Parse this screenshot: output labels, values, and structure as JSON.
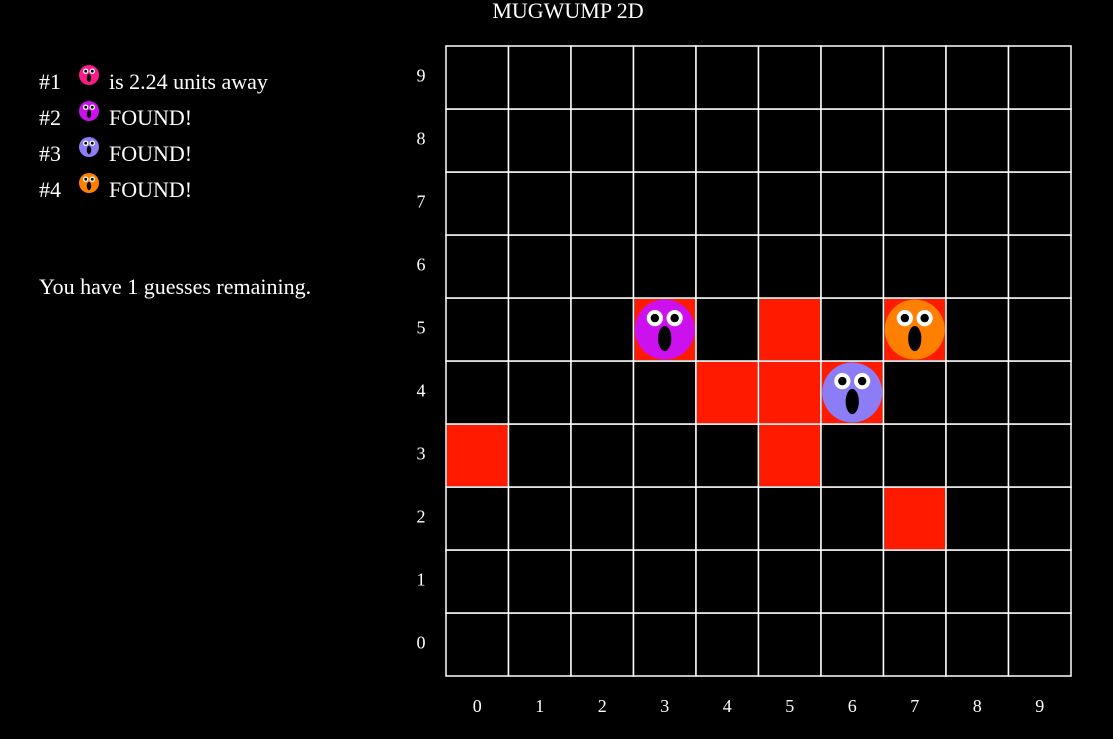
{
  "title": "MUGWUMP 2D",
  "mugwumps": [
    {
      "label": "#1",
      "color": "#ff1a8c",
      "status": "is 2.24 units away"
    },
    {
      "label": "#2",
      "color": "#cc11ee",
      "status": "FOUND!",
      "position": {
        "x": 3,
        "y": 5
      }
    },
    {
      "label": "#3",
      "color": "#8c7cf5",
      "status": "FOUND!",
      "position": {
        "x": 6,
        "y": 4
      }
    },
    {
      "label": "#4",
      "color": "#ff8000",
      "status": "FOUND!",
      "position": {
        "x": 7,
        "y": 5
      }
    }
  ],
  "message": "You have 1 guesses remaining.",
  "guess_color": "#ff1a00",
  "guesses": [
    {
      "x": 3,
      "y": 5
    },
    {
      "x": 5,
      "y": 5
    },
    {
      "x": 7,
      "y": 5
    },
    {
      "x": 4,
      "y": 4
    },
    {
      "x": 5,
      "y": 4
    },
    {
      "x": 6,
      "y": 4
    },
    {
      "x": 0,
      "y": 3
    },
    {
      "x": 5,
      "y": 3
    },
    {
      "x": 7,
      "y": 2
    }
  ],
  "x_labels": [
    0,
    1,
    2,
    3,
    4,
    5,
    6,
    7,
    8,
    9
  ],
  "y_labels": [
    0,
    1,
    2,
    3,
    4,
    5,
    6,
    7,
    8,
    9
  ]
}
